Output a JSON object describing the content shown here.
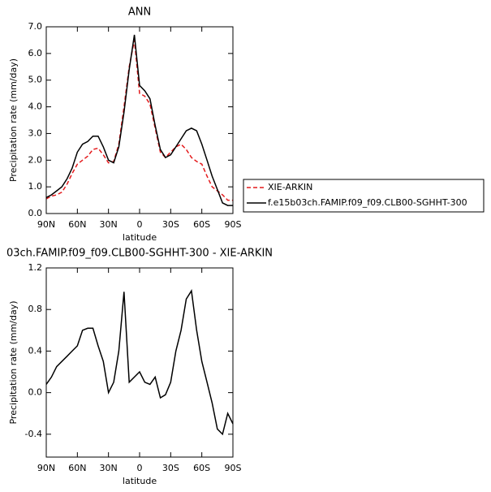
{
  "chart_data": [
    {
      "type": "line",
      "title": "ANN",
      "xlabel": "latitude",
      "ylabel": "Precipitation rate (mm/day)",
      "x": [
        90,
        85,
        80,
        75,
        70,
        65,
        60,
        55,
        50,
        45,
        40,
        35,
        30,
        25,
        20,
        15,
        10,
        5,
        0,
        -5,
        -10,
        -15,
        -20,
        -25,
        -30,
        -35,
        -40,
        -45,
        -50,
        -55,
        -60,
        -65,
        -70,
        -75,
        -80,
        -85,
        -90
      ],
      "xlim": [
        90,
        -90
      ],
      "xticks": [
        {
          "value": 90,
          "label": "90N"
        },
        {
          "value": 60,
          "label": "60N"
        },
        {
          "value": 30,
          "label": "30N"
        },
        {
          "value": 0,
          "label": "0"
        },
        {
          "value": -30,
          "label": "30S"
        },
        {
          "value": -60,
          "label": "60S"
        },
        {
          "value": -90,
          "label": "90S"
        }
      ],
      "ylim": [
        0,
        7
      ],
      "yticks": [
        {
          "value": 0,
          "label": "0.0"
        },
        {
          "value": 1,
          "label": "1.0"
        },
        {
          "value": 2,
          "label": "2.0"
        },
        {
          "value": 3,
          "label": "3.0"
        },
        {
          "value": 4,
          "label": "4.0"
        },
        {
          "value": 5,
          "label": "5.0"
        },
        {
          "value": 6,
          "label": "6.0"
        },
        {
          "value": 7,
          "label": "7.0"
        }
      ],
      "series": [
        {
          "name": "XIE-ARKIN",
          "color": "#e41a1c",
          "dash": true,
          "values": [
            0.55,
            0.65,
            0.7,
            0.8,
            1.1,
            1.5,
            1.85,
            2.0,
            2.15,
            2.4,
            2.45,
            2.2,
            1.9,
            1.95,
            2.6,
            4.0,
            5.5,
            6.5,
            4.5,
            4.4,
            4.1,
            3.2,
            2.3,
            2.1,
            2.3,
            2.5,
            2.6,
            2.4,
            2.1,
            1.95,
            1.85,
            1.4,
            1.0,
            0.85,
            0.7,
            0.5,
            0.5
          ]
        },
        {
          "name": "f.e15b03ch.FAMIP.f09_f09.CLB00-SGHHT-300",
          "color": "#000000",
          "dash": false,
          "values": [
            0.6,
            0.7,
            0.85,
            1.0,
            1.3,
            1.7,
            2.3,
            2.6,
            2.7,
            2.9,
            2.9,
            2.5,
            2.0,
            1.9,
            2.5,
            3.8,
            5.4,
            6.7,
            4.8,
            4.6,
            4.3,
            3.3,
            2.4,
            2.1,
            2.2,
            2.5,
            2.8,
            3.1,
            3.2,
            3.1,
            2.6,
            2.0,
            1.4,
            0.9,
            0.4,
            0.3,
            0.3
          ]
        }
      ]
    },
    {
      "type": "line",
      "title": "03ch.FAMIP.f09_f09.CLB00-SGHHT-300 - XIE-ARKIN",
      "xlabel": "latitude",
      "ylabel": "Precipitation rate (mm/day)",
      "x": [
        90,
        85,
        80,
        75,
        70,
        65,
        60,
        55,
        50,
        45,
        40,
        35,
        30,
        25,
        20,
        15,
        10,
        5,
        0,
        -5,
        -10,
        -15,
        -20,
        -25,
        -30,
        -35,
        -40,
        -45,
        -50,
        -55,
        -60,
        -65,
        -70,
        -75,
        -80,
        -85,
        -90
      ],
      "xlim": [
        90,
        -90
      ],
      "xticks": [
        {
          "value": 90,
          "label": "90N"
        },
        {
          "value": 60,
          "label": "60N"
        },
        {
          "value": 30,
          "label": "30N"
        },
        {
          "value": 0,
          "label": "0"
        },
        {
          "value": -30,
          "label": "30S"
        },
        {
          "value": -60,
          "label": "60S"
        },
        {
          "value": -90,
          "label": "90S"
        }
      ],
      "ylim": [
        -0.62,
        1.2
      ],
      "yticks": [
        {
          "value": -0.4,
          "label": "-0.4"
        },
        {
          "value": 0,
          "label": "0.0"
        },
        {
          "value": 0.4,
          "label": "0.4"
        },
        {
          "value": 0.8,
          "label": "0.8"
        },
        {
          "value": 1.2,
          "label": "1.2"
        }
      ],
      "series": [
        {
          "color": "#000000",
          "dash": false,
          "values": [
            0.08,
            0.15,
            0.25,
            0.3,
            0.35,
            0.4,
            0.45,
            0.6,
            0.62,
            0.62,
            0.45,
            0.3,
            0.0,
            0.1,
            0.4,
            0.97,
            0.1,
            0.15,
            0.2,
            0.1,
            0.08,
            0.15,
            -0.05,
            -0.02,
            0.1,
            0.4,
            0.6,
            0.9,
            0.98,
            0.6,
            0.3,
            0.1,
            -0.1,
            -0.35,
            -0.4,
            -0.2,
            -0.3
          ]
        }
      ]
    }
  ]
}
